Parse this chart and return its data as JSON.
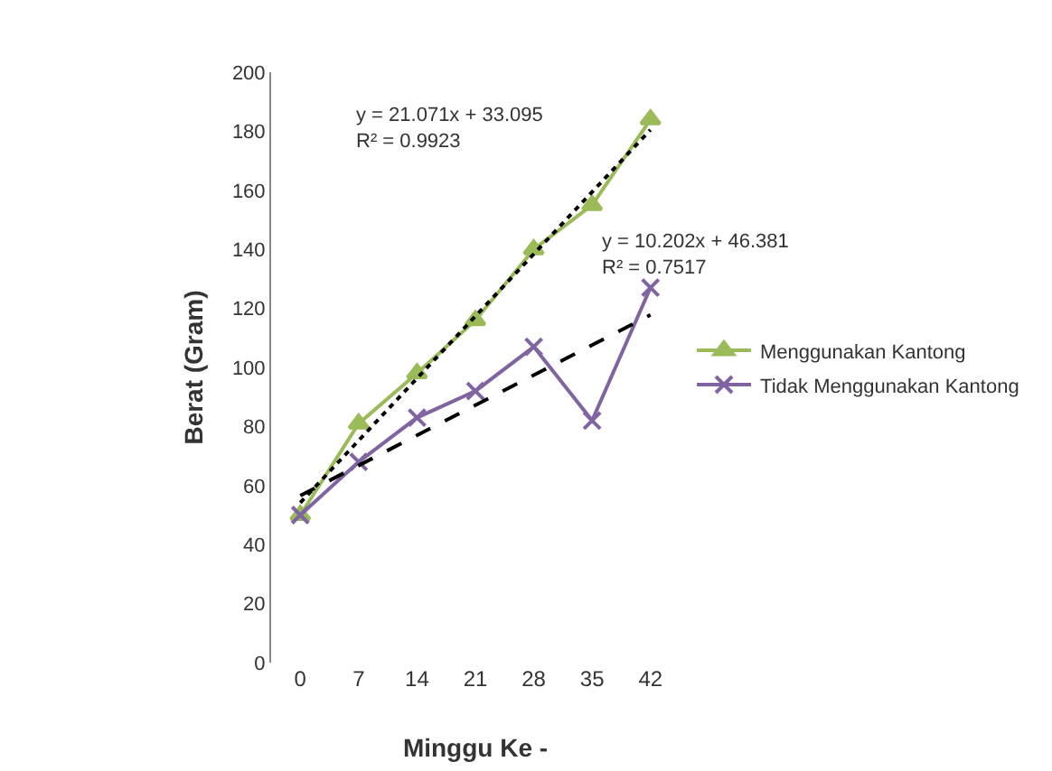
{
  "chart_data": {
    "type": "line",
    "xlabel": "Minggu Ke -",
    "ylabel": "Berat (Gram)",
    "categories": [
      "0",
      "7",
      "14",
      "21",
      "28",
      "35",
      "42"
    ],
    "series": [
      {
        "name": "Menggunakan Kantong",
        "color": "#9bbb59",
        "marker": "triangle",
        "values": [
          50,
          81,
          98,
          116,
          140,
          155,
          184
        ]
      },
      {
        "name": "Tidak Menggunakan Kantong",
        "color": "#8064a2",
        "marker": "cross",
        "values": [
          50,
          68,
          83,
          92,
          107,
          82,
          127
        ]
      },
      {
        "type": "line",
        "color": "#000000",
        "line_style": "dotted",
        "marker": "none",
        "x": [
          "0",
          "42"
        ],
        "values": [
          54.2,
          180.5
        ]
      },
      {
        "type": "line",
        "color": "#000000",
        "line_style": "dashed",
        "marker": "none",
        "x": [
          "0",
          "42"
        ],
        "values": [
          56.6,
          117.8
        ]
      }
    ],
    "ylim": [
      0,
      200
    ],
    "yticks": [
      0,
      20,
      40,
      60,
      80,
      100,
      120,
      140,
      160,
      180,
      200
    ],
    "grid": false,
    "legend": "right",
    "annotations": [
      "y = 21.071x + 33.095\nR² = 0.9923",
      "y = 10.202x + 46.381\nR² = 0.7517"
    ]
  }
}
